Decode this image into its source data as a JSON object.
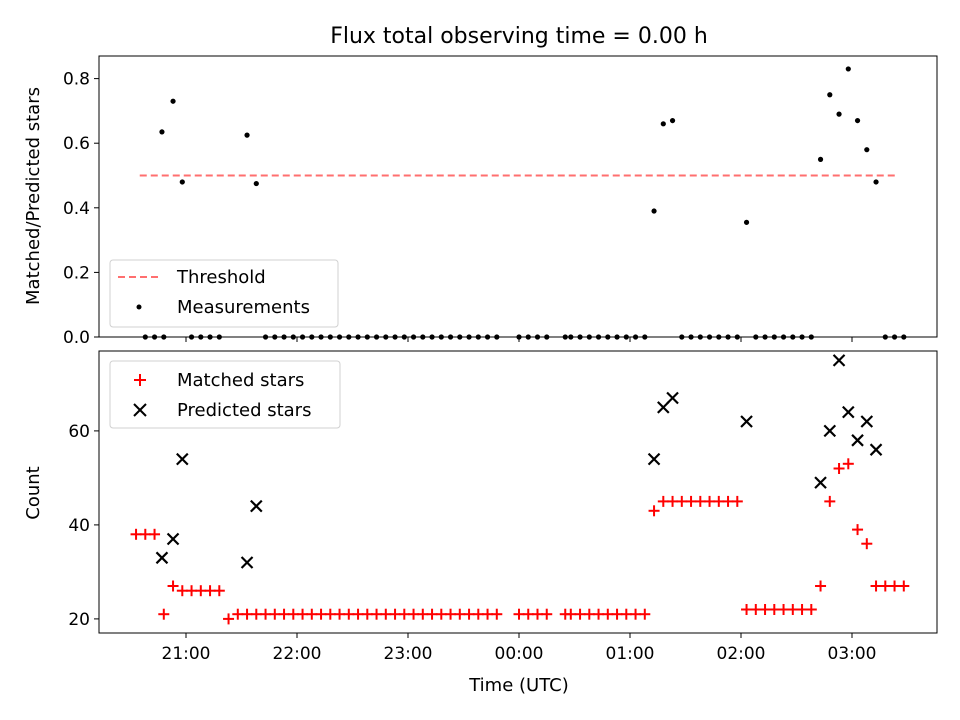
{
  "title": "Flux total observing time = 0.00 h",
  "xlabel": "Time (UTC)",
  "colors": {
    "threshold": "#ff6f6f",
    "matched": "#ff0000",
    "predicted": "#000000",
    "measurements": "#000000"
  },
  "chart_data": [
    {
      "type": "scatter",
      "title": "Flux total observing time = 0.00 h",
      "ylabel": "Matched/Predicted stars",
      "xlabel": "",
      "ylim": [
        0,
        0.87
      ],
      "yticks": [
        0.0,
        0.2,
        0.4,
        0.6,
        0.8
      ],
      "ytick_labels": [
        "0.0",
        "0.2",
        "0.4",
        "0.6",
        "0.8"
      ],
      "legend_position": "lower-left",
      "threshold": {
        "name": "Threshold",
        "y": 0.5,
        "x_start": "20:35",
        "x_end": "03:25"
      },
      "series": [
        {
          "name": "Measurements",
          "points": [
            [
              "20:38",
              0
            ],
            [
              "20:43",
              0
            ],
            [
              "20:48",
              0
            ],
            [
              "20:47",
              0.635
            ],
            [
              "20:53",
              0.73
            ],
            [
              "20:58",
              0.48
            ],
            [
              "21:03",
              0
            ],
            [
              "21:08",
              0
            ],
            [
              "21:13",
              0
            ],
            [
              "21:18",
              0
            ],
            [
              "21:33",
              0.625
            ],
            [
              "21:38",
              0.475
            ],
            [
              "21:43",
              0
            ],
            [
              "21:48",
              0
            ],
            [
              "21:53",
              0
            ],
            [
              "21:58",
              0
            ],
            [
              "22:03",
              0
            ],
            [
              "22:08",
              0
            ],
            [
              "22:13",
              0
            ],
            [
              "22:18",
              0
            ],
            [
              "22:23",
              0
            ],
            [
              "22:28",
              0
            ],
            [
              "22:33",
              0
            ],
            [
              "22:38",
              0
            ],
            [
              "22:43",
              0
            ],
            [
              "22:48",
              0
            ],
            [
              "22:53",
              0
            ],
            [
              "22:58",
              0
            ],
            [
              "23:03",
              0
            ],
            [
              "23:08",
              0
            ],
            [
              "23:13",
              0
            ],
            [
              "23:18",
              0
            ],
            [
              "23:23",
              0
            ],
            [
              "23:28",
              0
            ],
            [
              "23:33",
              0
            ],
            [
              "23:38",
              0
            ],
            [
              "23:43",
              0
            ],
            [
              "23:48",
              0
            ],
            [
              "00:00",
              0
            ],
            [
              "00:05",
              0
            ],
            [
              "00:10",
              0
            ],
            [
              "00:15",
              0
            ],
            [
              "00:25",
              0
            ],
            [
              "00:28",
              0
            ],
            [
              "00:33",
              0
            ],
            [
              "00:38",
              0
            ],
            [
              "00:43",
              0
            ],
            [
              "00:48",
              0
            ],
            [
              "00:53",
              0
            ],
            [
              "00:58",
              0
            ],
            [
              "01:03",
              0
            ],
            [
              "01:08",
              0
            ],
            [
              "01:13",
              0.39
            ],
            [
              "01:18",
              0.66
            ],
            [
              "01:23",
              0.67
            ],
            [
              "01:28",
              0
            ],
            [
              "01:33",
              0
            ],
            [
              "01:38",
              0
            ],
            [
              "01:43",
              0
            ],
            [
              "01:48",
              0
            ],
            [
              "01:53",
              0
            ],
            [
              "01:58",
              0
            ],
            [
              "02:03",
              0.355
            ],
            [
              "02:08",
              0
            ],
            [
              "02:13",
              0
            ],
            [
              "02:18",
              0
            ],
            [
              "02:23",
              0
            ],
            [
              "02:28",
              0
            ],
            [
              "02:33",
              0
            ],
            [
              "02:38",
              0
            ],
            [
              "02:43",
              0.55
            ],
            [
              "02:48",
              0.75
            ],
            [
              "02:53",
              0.69
            ],
            [
              "02:58",
              0.83
            ],
            [
              "03:03",
              0.67
            ],
            [
              "03:08",
              0.58
            ],
            [
              "03:13",
              0.48
            ],
            [
              "03:18",
              0
            ],
            [
              "03:23",
              0
            ],
            [
              "03:28",
              0
            ]
          ]
        }
      ]
    },
    {
      "type": "scatter",
      "ylabel": "Count",
      "xlabel": "Time (UTC)",
      "ylim": [
        17,
        77
      ],
      "yticks": [
        20,
        40,
        60
      ],
      "ytick_labels": [
        "20",
        "40",
        "60"
      ],
      "xticks": [
        "21:00",
        "22:00",
        "23:00",
        "00:00",
        "01:00",
        "02:00",
        "03:00"
      ],
      "legend_position": "upper-left",
      "series": [
        {
          "name": "Matched stars",
          "points": [
            [
              "20:33",
              38
            ],
            [
              "20:38",
              38
            ],
            [
              "20:43",
              38
            ],
            [
              "20:48",
              21
            ],
            [
              "20:53",
              27
            ],
            [
              "20:58",
              26
            ],
            [
              "21:03",
              26
            ],
            [
              "21:08",
              26
            ],
            [
              "21:13",
              26
            ],
            [
              "21:18",
              26
            ],
            [
              "21:23",
              20
            ],
            [
              "21:28",
              21
            ],
            [
              "21:33",
              21
            ],
            [
              "21:38",
              21
            ],
            [
              "21:43",
              21
            ],
            [
              "21:48",
              21
            ],
            [
              "21:53",
              21
            ],
            [
              "21:58",
              21
            ],
            [
              "22:03",
              21
            ],
            [
              "22:08",
              21
            ],
            [
              "22:13",
              21
            ],
            [
              "22:18",
              21
            ],
            [
              "22:23",
              21
            ],
            [
              "22:28",
              21
            ],
            [
              "22:33",
              21
            ],
            [
              "22:38",
              21
            ],
            [
              "22:43",
              21
            ],
            [
              "22:48",
              21
            ],
            [
              "22:53",
              21
            ],
            [
              "22:58",
              21
            ],
            [
              "23:03",
              21
            ],
            [
              "23:08",
              21
            ],
            [
              "23:13",
              21
            ],
            [
              "23:18",
              21
            ],
            [
              "23:23",
              21
            ],
            [
              "23:28",
              21
            ],
            [
              "23:33",
              21
            ],
            [
              "23:38",
              21
            ],
            [
              "23:43",
              21
            ],
            [
              "23:48",
              21
            ],
            [
              "00:00",
              21
            ],
            [
              "00:05",
              21
            ],
            [
              "00:10",
              21
            ],
            [
              "00:15",
              21
            ],
            [
              "00:25",
              21
            ],
            [
              "00:28",
              21
            ],
            [
              "00:33",
              21
            ],
            [
              "00:38",
              21
            ],
            [
              "00:43",
              21
            ],
            [
              "00:48",
              21
            ],
            [
              "00:53",
              21
            ],
            [
              "00:58",
              21
            ],
            [
              "01:03",
              21
            ],
            [
              "01:08",
              21
            ],
            [
              "01:13",
              43
            ],
            [
              "01:18",
              45
            ],
            [
              "01:23",
              45
            ],
            [
              "01:28",
              45
            ],
            [
              "01:33",
              45
            ],
            [
              "01:38",
              45
            ],
            [
              "01:43",
              45
            ],
            [
              "01:48",
              45
            ],
            [
              "01:53",
              45
            ],
            [
              "01:58",
              45
            ],
            [
              "02:03",
              22
            ],
            [
              "02:08",
              22
            ],
            [
              "02:13",
              22
            ],
            [
              "02:18",
              22
            ],
            [
              "02:23",
              22
            ],
            [
              "02:28",
              22
            ],
            [
              "02:33",
              22
            ],
            [
              "02:38",
              22
            ],
            [
              "02:43",
              27
            ],
            [
              "02:48",
              45
            ],
            [
              "02:53",
              52
            ],
            [
              "02:58",
              53
            ],
            [
              "03:03",
              39
            ],
            [
              "03:08",
              36
            ],
            [
              "03:13",
              27
            ],
            [
              "03:18",
              27
            ],
            [
              "03:23",
              27
            ],
            [
              "03:28",
              27
            ]
          ]
        },
        {
          "name": "Predicted stars",
          "points": [
            [
              "20:47",
              33
            ],
            [
              "20:53",
              37
            ],
            [
              "20:58",
              54
            ],
            [
              "21:33",
              32
            ],
            [
              "21:38",
              44
            ],
            [
              "01:13",
              54
            ],
            [
              "01:18",
              65
            ],
            [
              "01:23",
              67
            ],
            [
              "02:03",
              62
            ],
            [
              "02:43",
              49
            ],
            [
              "02:48",
              60
            ],
            [
              "02:53",
              75
            ],
            [
              "02:58",
              64
            ],
            [
              "03:03",
              58
            ],
            [
              "03:08",
              62
            ],
            [
              "03:13",
              56
            ]
          ]
        }
      ]
    }
  ]
}
